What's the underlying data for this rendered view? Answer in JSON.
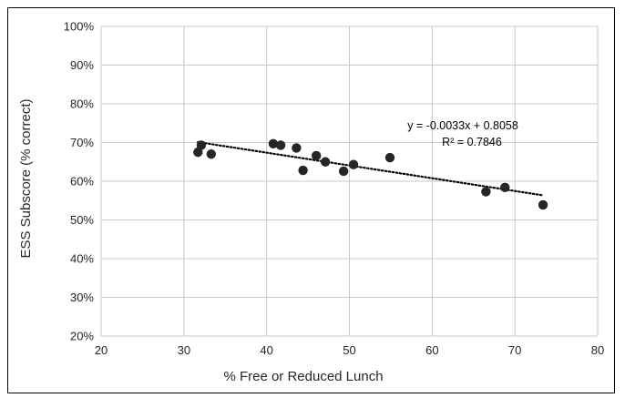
{
  "chart_data": {
    "type": "scatter",
    "title": "",
    "xlabel": "% Free or Reduced Lunch",
    "ylabel": "ESS Subscore (% correct)",
    "xlim": [
      20,
      80
    ],
    "ylim": [
      0.2,
      1.0
    ],
    "x_ticks": [
      20,
      30,
      40,
      50,
      60,
      70,
      80
    ],
    "x_tick_labels": [
      "20",
      "30",
      "40",
      "50",
      "60",
      "70",
      "80"
    ],
    "y_ticks": [
      0.2,
      0.3,
      0.4,
      0.5,
      0.6,
      0.7,
      0.8,
      0.9,
      1.0
    ],
    "y_tick_labels": [
      "20%",
      "30%",
      "40%",
      "50%",
      "60%",
      "70%",
      "80%",
      "90%",
      "100%"
    ],
    "grid": true,
    "legend": "none",
    "series": [
      {
        "marker_color": "#262626",
        "points": [
          {
            "x": 31.7,
            "y": 0.675
          },
          {
            "x": 32.1,
            "y": 0.693
          },
          {
            "x": 33.3,
            "y": 0.67
          },
          {
            "x": 40.8,
            "y": 0.697
          },
          {
            "x": 41.7,
            "y": 0.693
          },
          {
            "x": 43.6,
            "y": 0.686
          },
          {
            "x": 44.4,
            "y": 0.628
          },
          {
            "x": 46.0,
            "y": 0.666
          },
          {
            "x": 47.1,
            "y": 0.65
          },
          {
            "x": 49.3,
            "y": 0.626
          },
          {
            "x": 50.5,
            "y": 0.643
          },
          {
            "x": 54.9,
            "y": 0.661
          },
          {
            "x": 66.5,
            "y": 0.573
          },
          {
            "x": 68.8,
            "y": 0.584
          },
          {
            "x": 73.4,
            "y": 0.539
          }
        ]
      }
    ],
    "trendline": {
      "type": "linear",
      "slope": -0.0033,
      "intercept": 0.8058,
      "x_range": [
        31.7,
        73.4
      ],
      "style": "dotted",
      "color": "#000000"
    },
    "annotations": [
      {
        "text": "y = -0.0033x + 0.8058"
      },
      {
        "text": "R² = 0.7846"
      }
    ]
  },
  "colors": {
    "gridline": "#c8c8c8",
    "axis_text": "#262626",
    "marker": "#262626",
    "frame": "#000000"
  }
}
